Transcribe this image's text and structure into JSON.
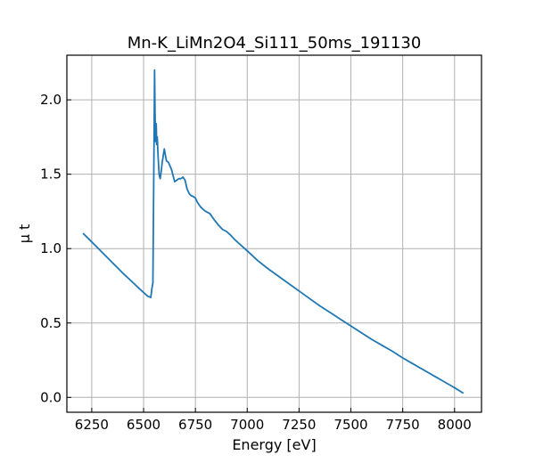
{
  "chart_data": {
    "type": "line",
    "title": "Mn-K_LiMn2O4_Si111_50ms_191130",
    "xlabel": "Energy [eV]",
    "ylabel": "μ t",
    "xlim": [
      6130,
      8130
    ],
    "ylim": [
      -0.1,
      2.3
    ],
    "xticks": [
      6250,
      6500,
      6750,
      7000,
      7250,
      7500,
      7750,
      8000
    ],
    "yticks": [
      0.0,
      0.5,
      1.0,
      1.5,
      2.0
    ],
    "xtick_labels": [
      "6250",
      "6500",
      "6750",
      "7000",
      "7250",
      "7500",
      "7750",
      "8000"
    ],
    "ytick_labels": [
      "0.0",
      "0.5",
      "1.0",
      "1.5",
      "2.0"
    ],
    "grid": true,
    "tick_direction": "in",
    "legend": "none",
    "series": [
      {
        "color": "#1f77b4",
        "x": [
          6210,
          6250,
          6300,
          6350,
          6400,
          6450,
          6480,
          6500,
          6520,
          6535,
          6540,
          6545,
          6548,
          6551,
          6553,
          6555,
          6557,
          6559,
          6561,
          6563,
          6566,
          6570,
          6575,
          6580,
          6585,
          6590,
          6600,
          6610,
          6620,
          6635,
          6650,
          6660,
          6670,
          6680,
          6690,
          6700,
          6710,
          6720,
          6730,
          6740,
          6750,
          6760,
          6775,
          6790,
          6800,
          6820,
          6840,
          6860,
          6880,
          6900,
          6920,
          6940,
          6960,
          6980,
          7000,
          7050,
          7100,
          7150,
          7200,
          7250,
          7300,
          7350,
          7400,
          7450,
          7500,
          7550,
          7600,
          7650,
          7700,
          7750,
          7800,
          7850,
          7900,
          7950,
          8000,
          8040
        ],
        "y": [
          1.1,
          1.045,
          0.975,
          0.905,
          0.835,
          0.77,
          0.73,
          0.705,
          0.68,
          0.672,
          0.73,
          0.77,
          1.3,
          1.8,
          2.2,
          1.95,
          1.72,
          1.74,
          1.84,
          1.7,
          1.75,
          1.62,
          1.5,
          1.47,
          1.52,
          1.58,
          1.67,
          1.59,
          1.58,
          1.53,
          1.45,
          1.46,
          1.47,
          1.47,
          1.48,
          1.46,
          1.4,
          1.37,
          1.355,
          1.35,
          1.34,
          1.31,
          1.28,
          1.26,
          1.25,
          1.235,
          1.195,
          1.16,
          1.13,
          1.115,
          1.09,
          1.06,
          1.035,
          1.01,
          0.985,
          0.92,
          0.865,
          0.815,
          0.765,
          0.715,
          0.665,
          0.615,
          0.57,
          0.525,
          0.48,
          0.435,
          0.39,
          0.35,
          0.31,
          0.265,
          0.225,
          0.185,
          0.145,
          0.105,
          0.065,
          0.03
        ]
      }
    ]
  }
}
